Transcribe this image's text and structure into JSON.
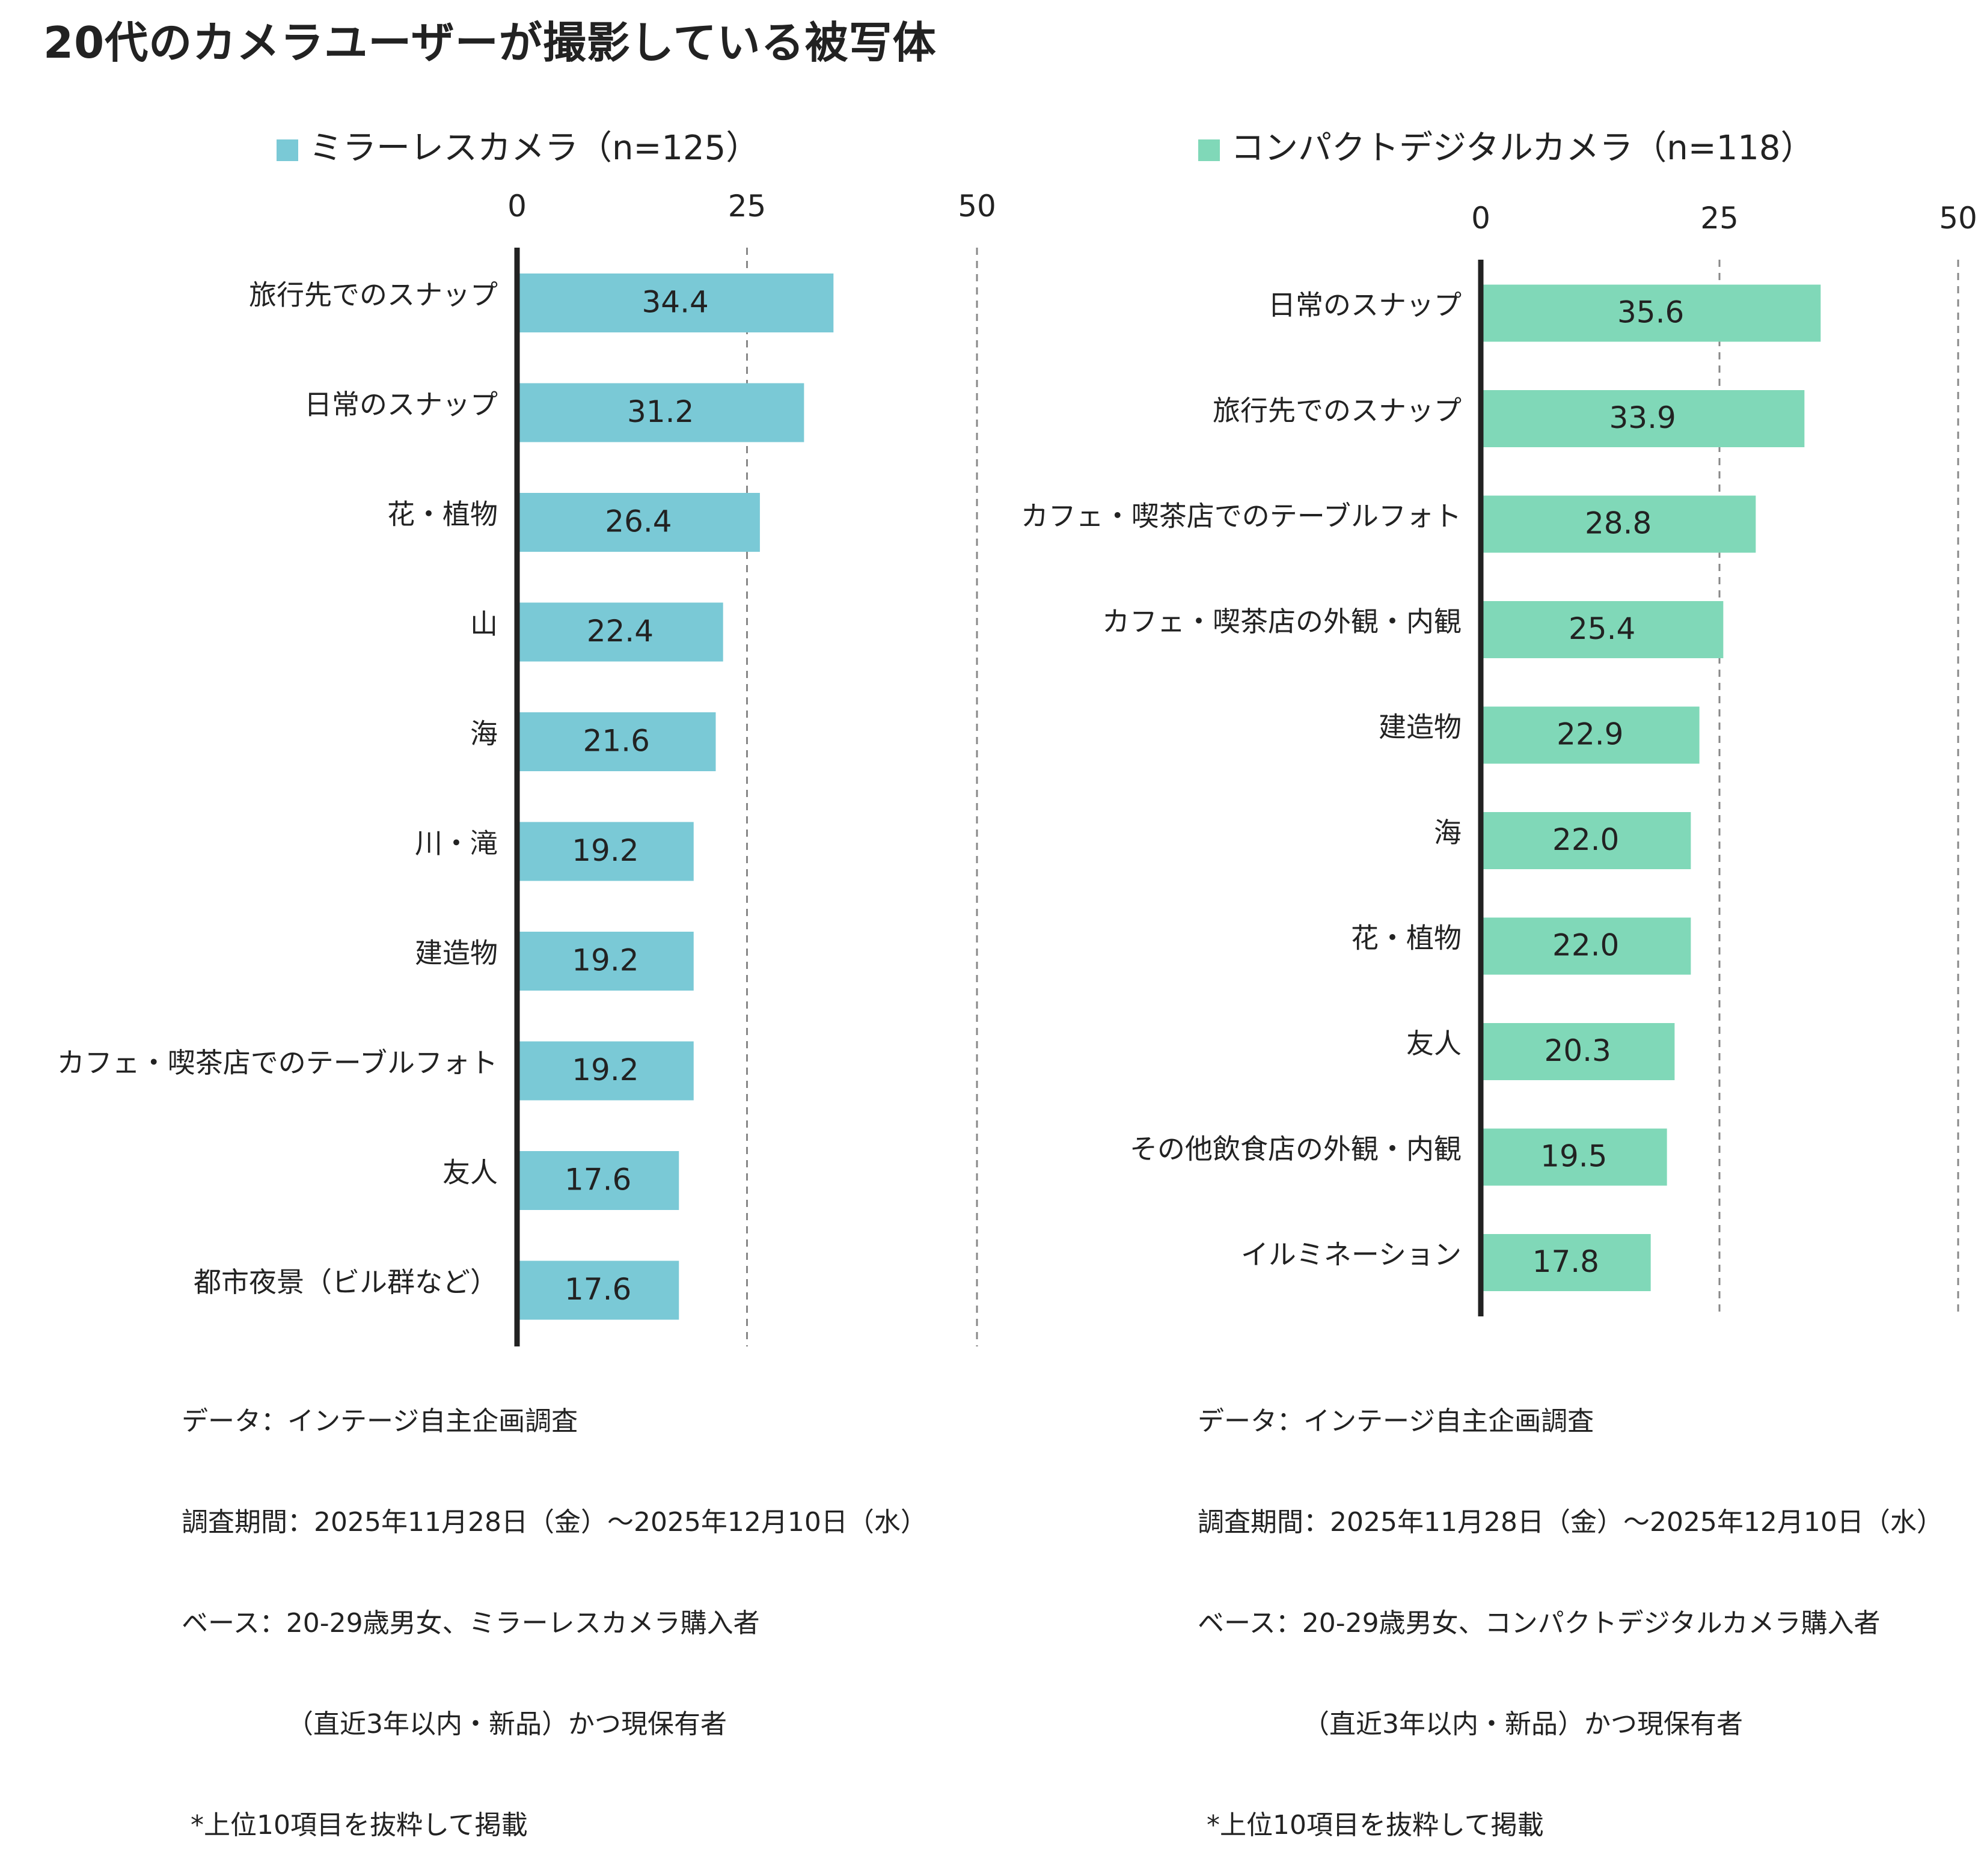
{
  "title": "20代のカメラユーザーが撮影している被写体",
  "chart_data": [
    {
      "type": "bar",
      "orientation": "horizontal",
      "legend_label": "ミラーレスカメラ（n=125）",
      "color": "#7ac9d6",
      "xlim": [
        0,
        50
      ],
      "ticks": [
        "0",
        "25",
        "50"
      ],
      "grid": "dashed vertical lines at 25 and 50",
      "categories": [
        "旅行先でのスナップ",
        "日常のスナップ",
        "花・植物",
        "山",
        "海",
        "川・滝",
        "建造物",
        "カフェ・喫茶店でのテーブルフォト",
        "友人",
        "都市夜景（ビル群など）"
      ],
      "values": [
        34.4,
        31.2,
        26.4,
        22.4,
        21.6,
        19.2,
        19.2,
        19.2,
        17.6,
        17.6
      ],
      "value_labels": [
        "34.4",
        "31.2",
        "26.4",
        "22.4",
        "21.6",
        "19.2",
        "19.2",
        "19.2",
        "17.6",
        "17.6"
      ]
    },
    {
      "type": "bar",
      "orientation": "horizontal",
      "legend_label": "コンパクトデジタルカメラ（n=118）",
      "color": "#80d8b8",
      "xlim": [
        0,
        50
      ],
      "ticks": [
        "0",
        "25",
        "50"
      ],
      "grid": "dashed vertical lines at 25 and 50",
      "categories": [
        "日常のスナップ",
        "旅行先でのスナップ",
        "カフェ・喫茶店でのテーブルフォト",
        "カフェ・喫茶店の外観・内観",
        "建造物",
        "海",
        "花・植物",
        "友人",
        "その他飲食店の外観・内観",
        "イルミネーション"
      ],
      "values": [
        35.6,
        33.9,
        28.8,
        25.4,
        22.9,
        22.0,
        22.0,
        20.3,
        19.5,
        17.8
      ],
      "value_labels": [
        "35.6",
        "33.9",
        "28.8",
        "25.4",
        "22.9",
        "22.0",
        "22.0",
        "20.3",
        "19.5",
        "17.8"
      ]
    }
  ],
  "notes": [
    {
      "line1": "データ：インテージ自主企画調査",
      "line2": "調査期間：2025年11月28日（金）～2025年12月10日（水）",
      "line3": "ベース：20-29歳男女、ミラーレスカメラ購入者",
      "line4": "（直近3年以内・新品）かつ現保有者",
      "line5": "*上位10項目を抜粋して掲載"
    },
    {
      "line1": "データ：インテージ自主企画調査",
      "line2": "調査期間：2025年11月28日（金）～2025年12月10日（水）",
      "line3": "ベース：20-29歳男女、コンパクトデジタルカメラ購入者",
      "line4": "（直近3年以内・新品）かつ現保有者",
      "line5": "*上位10項目を抜粋して掲載"
    }
  ]
}
